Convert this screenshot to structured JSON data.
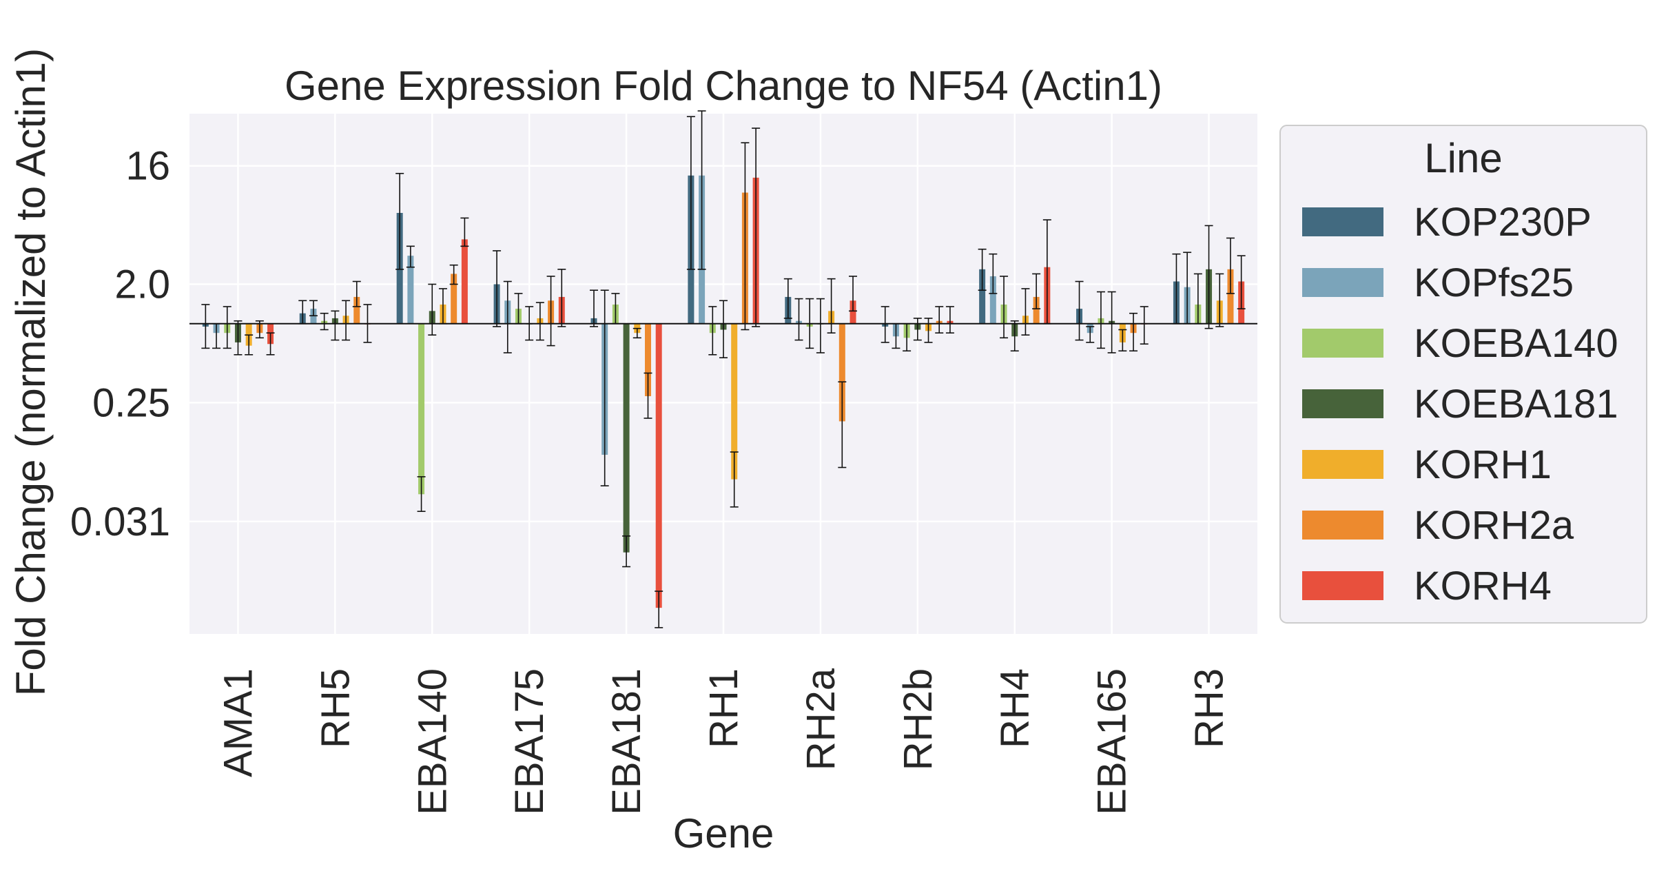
{
  "chart_data": {
    "type": "bar",
    "title": "Gene Expression Fold Change to NF54 (Actin1)",
    "xlabel": "Gene",
    "ylabel": "Fold Change (normalized to Actin1)",
    "y_scale": "log2",
    "ylim": [
      0.0043,
      40
    ],
    "yticks": [
      16,
      2.0,
      0.25,
      0.031
    ],
    "ytick_labels": [
      "16",
      "2.0",
      "0.25",
      "0.031"
    ],
    "baseline": 1,
    "grid": true,
    "legend_position": "outside-right",
    "legend_title": "Line",
    "categories": [
      "AMA1",
      "RH5",
      "EBA140",
      "EBA175",
      "EBA181",
      "RH1",
      "RH2a",
      "RH2b",
      "RH4",
      "EBA165",
      "RH3"
    ],
    "series": [
      {
        "name": "KOP230P",
        "color": "#426A80",
        "values": [
          0.95,
          1.2,
          7.0,
          2.0,
          1.1,
          13.5,
          1.6,
          0.95,
          2.6,
          1.3,
          2.1
        ],
        "err_low": [
          0.65,
          1.0,
          2.6,
          0.95,
          0.95,
          2.6,
          1.1,
          0.72,
          1.8,
          0.75,
          1.0
        ],
        "err_high": [
          1.4,
          1.5,
          14.0,
          3.6,
          1.8,
          38.0,
          2.2,
          1.35,
          3.7,
          2.1,
          3.4
        ]
      },
      {
        "name": "KOPfs25",
        "color": "#7BA4BA",
        "values": [
          0.85,
          1.3,
          3.3,
          1.5,
          0.1,
          13.5,
          1.05,
          0.8,
          2.3,
          0.85,
          1.9
        ],
        "err_low": [
          0.65,
          1.15,
          2.7,
          0.6,
          0.058,
          2.6,
          0.75,
          0.65,
          1.7,
          0.72,
          1.0
        ],
        "err_high": [
          1.0,
          1.5,
          3.9,
          2.1,
          1.8,
          42.0,
          1.55,
          1.0,
          3.4,
          0.95,
          3.5
        ]
      },
      {
        "name": "KOEBA140",
        "color": "#A2CA6B",
        "values": [
          0.85,
          1.05,
          0.05,
          1.3,
          1.4,
          0.85,
          0.95,
          0.78,
          1.4,
          1.1,
          1.4
        ],
        "err_low": [
          0.65,
          0.9,
          0.037,
          1.0,
          1.0,
          0.58,
          0.65,
          0.62,
          0.78,
          0.65,
          1.0
        ],
        "err_high": [
          1.35,
          1.2,
          0.068,
          1.7,
          1.7,
          1.35,
          1.55,
          1.0,
          2.3,
          1.75,
          2.4
        ]
      },
      {
        "name": "KOEBA181",
        "color": "#47633A",
        "values": [
          0.72,
          1.1,
          1.25,
          1.0,
          0.018,
          0.9,
          1.0,
          0.9,
          0.8,
          1.05,
          2.6
        ],
        "err_low": [
          0.58,
          0.75,
          0.82,
          0.75,
          0.014,
          0.55,
          0.6,
          0.75,
          0.62,
          0.6,
          0.92
        ],
        "err_high": [
          1.05,
          1.25,
          2.0,
          1.35,
          0.024,
          1.5,
          1.55,
          1.1,
          1.05,
          1.75,
          5.6
        ]
      },
      {
        "name": "KORH1",
        "color": "#F0AE2B",
        "values": [
          0.68,
          1.15,
          1.4,
          1.1,
          0.85,
          0.065,
          1.25,
          0.88,
          1.15,
          0.72,
          1.5
        ],
        "err_low": [
          0.58,
          0.75,
          1.0,
          0.75,
          0.78,
          0.04,
          0.85,
          0.72,
          0.82,
          0.62,
          0.95
        ],
        "err_high": [
          0.82,
          1.5,
          1.85,
          1.45,
          0.92,
          0.105,
          2.2,
          1.1,
          1.85,
          0.9,
          2.4
        ]
      },
      {
        "name": "KORH2a",
        "color": "#ED8A2E",
        "values": [
          0.85,
          1.6,
          2.4,
          1.5,
          0.28,
          10.0,
          0.18,
          1.05,
          1.6,
          0.85,
          2.6
        ],
        "err_low": [
          0.78,
          1.35,
          2.0,
          0.68,
          0.19,
          0.9,
          0.08,
          0.85,
          1.3,
          0.62,
          1.7
        ],
        "err_high": [
          1.05,
          2.1,
          2.8,
          2.3,
          0.42,
          24.0,
          0.36,
          1.35,
          2.4,
          1.2,
          4.5
        ]
      },
      {
        "name": "KORH4",
        "color": "#E8503D",
        "values": [
          0.7,
          1.0,
          4.4,
          1.6,
          0.0068,
          13.0,
          1.5,
          1.05,
          2.7,
          1.0,
          2.1
        ],
        "err_low": [
          0.58,
          0.72,
          3.9,
          0.95,
          0.0048,
          0.95,
          1.25,
          0.85,
          1.0,
          0.7,
          1.3
        ],
        "err_high": [
          0.85,
          1.4,
          6.4,
          2.6,
          0.0091,
          31.0,
          2.3,
          1.35,
          6.2,
          1.35,
          3.3
        ]
      }
    ]
  }
}
